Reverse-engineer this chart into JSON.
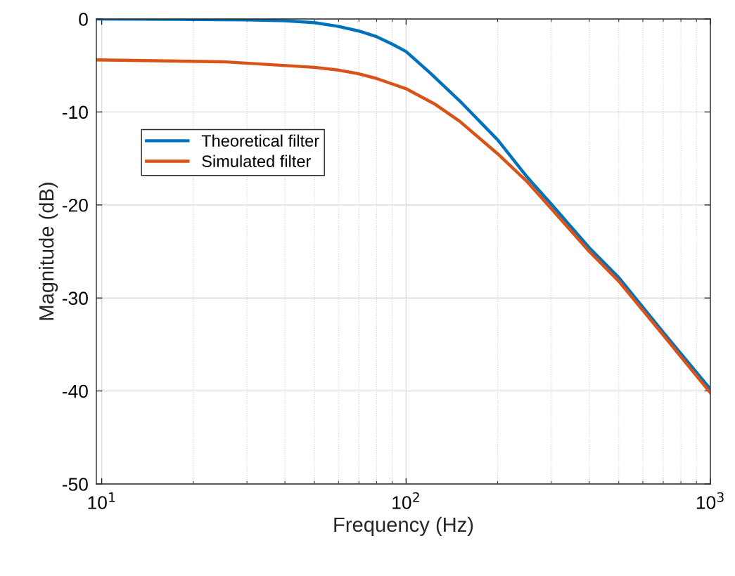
{
  "chart_data": {
    "type": "line",
    "xlabel": "Frequency (Hz)",
    "ylabel": "Magnitude (dB)",
    "log": "x",
    "grid": true,
    "legend": "top left",
    "line_style": "solid",
    "marker": "none",
    "xlim": [
      9.6,
      1000
    ],
    "xticks": [
      {
        "value": 10,
        "label": "10$^{1}$"
      },
      {
        "value": 100,
        "label": "10$^{2}$"
      },
      {
        "value": 1000,
        "label": "10$^{3}$"
      }
    ],
    "ylim": [
      -50,
      0
    ],
    "yticks": [
      -50,
      -40,
      -30,
      -20,
      -10,
      0
    ],
    "series": [
      {
        "name": "Theoretical filter",
        "color": "#0072bd",
        "x": [
          9.6,
          20,
          30,
          40,
          50,
          60,
          70,
          80,
          90,
          100,
          120,
          150,
          200,
          250,
          300,
          400,
          500,
          700,
          1000
        ],
        "values": [
          0,
          -0.05,
          -0.1,
          -0.2,
          -0.4,
          -0.8,
          -1.3,
          -1.9,
          -2.7,
          -3.5,
          -5.8,
          -8.8,
          -13,
          -17,
          -19.9,
          -24.6,
          -27.8,
          -33.7,
          -39.8
        ]
      },
      {
        "name": "Simulated filter",
        "color": "#d95319",
        "x": [
          9.6,
          25,
          50,
          60,
          70,
          80,
          100,
          125,
          150,
          200,
          250,
          300,
          400,
          500,
          700,
          1000
        ],
        "values": [
          -4.4,
          -4.6,
          -5.2,
          -5.5,
          -5.9,
          -6.4,
          -7.5,
          -9.2,
          -11,
          -14.5,
          -17.5,
          -20.4,
          -25,
          -28.2,
          -34,
          -40.2
        ]
      }
    ]
  }
}
